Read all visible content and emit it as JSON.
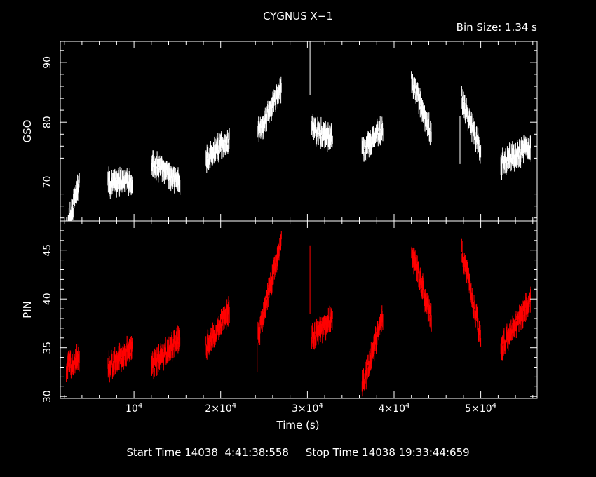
{
  "header": {
    "title": "CYGNUS X−1",
    "bin_size": "Bin Size: 1.34 s"
  },
  "footer": {
    "times": "Start Time 14038  4:41:38:558     Stop Time 14038 19:33:44:659"
  },
  "chart_data": [
    {
      "type": "scatter",
      "ylabel": "GSO",
      "xlim": [
        1500,
        56500
      ],
      "ylim": [
        63.5,
        93.5
      ],
      "yticks": [
        70,
        80,
        90
      ],
      "color": "#ffffff",
      "segments": [
        {
          "x": [
            2200,
            3700
          ],
          "y": [
            62,
            70
          ]
        },
        {
          "x": [
            7000,
            9800
          ],
          "y": [
            70,
            70
          ]
        },
        {
          "x": [
            12000,
            15300
          ],
          "y": [
            73,
            70
          ]
        },
        {
          "x": [
            18300,
            21000
          ],
          "y": [
            74,
            77
          ]
        },
        {
          "x": [
            24300,
            27000
          ],
          "y": [
            78,
            86
          ]
        },
        {
          "x": [
            30500,
            32900
          ],
          "y": [
            79,
            77
          ]
        },
        {
          "x": [
            36300,
            38700
          ],
          "y": [
            75,
            79
          ]
        },
        {
          "x": [
            42000,
            44300
          ],
          "y": [
            87,
            78
          ]
        },
        {
          "x": [
            47800,
            50000
          ],
          "y": [
            84,
            75
          ]
        },
        {
          "x": [
            52300,
            55800
          ],
          "y": [
            73,
            76
          ]
        }
      ],
      "outliers": [
        {
          "x": 30300,
          "y": 89,
          "err": 4.5
        },
        {
          "x": 47600,
          "y": 77,
          "err": 4
        }
      ]
    },
    {
      "type": "scatter",
      "xlabel": "Time (s)",
      "ylabel": "PIN",
      "xlim": [
        1500,
        56500
      ],
      "ylim": [
        29.8,
        48.0
      ],
      "yticks": [
        30,
        35,
        40,
        45
      ],
      "xtick_values": [
        10000,
        20000,
        30000,
        40000,
        50000
      ],
      "xtick_labels": [
        {
          "mant": "10",
          "exp": "4"
        },
        {
          "mant": "2×10",
          "exp": "4"
        },
        {
          "mant": "3×10",
          "exp": "4"
        },
        {
          "mant": "4×10",
          "exp": "4"
        },
        {
          "mant": "5×10",
          "exp": "4"
        }
      ],
      "color": "#ff0000",
      "segments": [
        {
          "x": [
            2200,
            3700
          ],
          "y": [
            33,
            34
          ]
        },
        {
          "x": [
            7000,
            9800
          ],
          "y": [
            33,
            35
          ]
        },
        {
          "x": [
            12000,
            15300
          ],
          "y": [
            33,
            36
          ]
        },
        {
          "x": [
            18300,
            21000
          ],
          "y": [
            35,
            39
          ]
        },
        {
          "x": [
            24300,
            27000
          ],
          "y": [
            36,
            46
          ]
        },
        {
          "x": [
            30500,
            32900
          ],
          "y": [
            36,
            38
          ]
        },
        {
          "x": [
            36300,
            38700
          ],
          "y": [
            31,
            38
          ]
        },
        {
          "x": [
            42000,
            44300
          ],
          "y": [
            45,
            38
          ]
        },
        {
          "x": [
            47800,
            50000
          ],
          "y": [
            45,
            36
          ]
        },
        {
          "x": [
            52300,
            55800
          ],
          "y": [
            35,
            40
          ]
        }
      ],
      "outliers": [
        {
          "x": 30300,
          "y": 42,
          "err": 3.5
        },
        {
          "x": 24200,
          "y": 34,
          "err": 1.5
        }
      ]
    }
  ]
}
